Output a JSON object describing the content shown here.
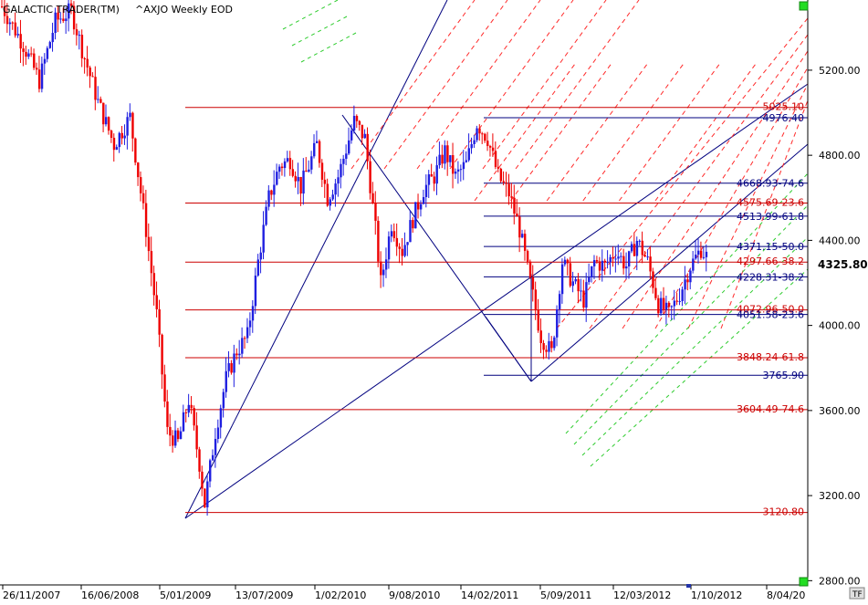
{
  "app": {
    "title": "GALACTIC TRADER(TM)",
    "symbol_caption": "^AXJO Weekly EOD",
    "corner_button": "TF"
  },
  "colors": {
    "background": "#ffffff",
    "up_bar": "#1f1fe0",
    "down_bar": "#ee0000",
    "fib_red": "#cc0000",
    "fib_blue": "#00007f",
    "fork_red": "#ff2a2a",
    "fork_green": "#2ecc2e",
    "axis": "#000000",
    "marker_green": "#22dd22"
  },
  "chart_data": {
    "type": "candlestick",
    "title": "",
    "instrument": "^AXJO",
    "period": "Weekly EOD",
    "x_tick_labels": [
      "26/11/2007",
      "16/06/2008",
      "5/01/2009",
      "13/07/2009",
      "1/02/2010",
      "9/08/2010",
      "14/02/2011",
      "5/09/2011",
      "12/03/2012",
      "1/10/2012",
      "8/04/20"
    ],
    "y_tick_labels": [
      "5200.00",
      "4800.00",
      "4400.00",
      "4000.00",
      "3600.00",
      "3200.00",
      "2800.00"
    ],
    "y_ticks": [
      5200,
      4800,
      4400,
      4000,
      3600,
      3200,
      2800
    ],
    "ylim": [
      2780,
      5530
    ],
    "last_price": "4325.80",
    "price_path": [
      {
        "t": 0,
        "p": 5500
      },
      {
        "t": 8,
        "p": 5320
      },
      {
        "t": 14,
        "p": 5150
      },
      {
        "t": 20,
        "p": 5430
      },
      {
        "t": 26,
        "p": 5480
      },
      {
        "t": 30,
        "p": 5300
      },
      {
        "t": 36,
        "p": 5050
      },
      {
        "t": 42,
        "p": 4850
      },
      {
        "t": 48,
        "p": 4980
      },
      {
        "t": 54,
        "p": 4450
      },
      {
        "t": 58,
        "p": 4050
      },
      {
        "t": 62,
        "p": 3500
      },
      {
        "t": 66,
        "p": 3450
      },
      {
        "t": 70,
        "p": 3650
      },
      {
        "t": 74,
        "p": 3350
      },
      {
        "t": 76,
        "p": 3160
      },
      {
        "t": 80,
        "p": 3500
      },
      {
        "t": 84,
        "p": 3750
      },
      {
        "t": 88,
        "p": 3880
      },
      {
        "t": 92,
        "p": 3950
      },
      {
        "t": 96,
        "p": 4300
      },
      {
        "t": 100,
        "p": 4600
      },
      {
        "t": 104,
        "p": 4750
      },
      {
        "t": 108,
        "p": 4780
      },
      {
        "t": 112,
        "p": 4650
      },
      {
        "t": 118,
        "p": 4850
      },
      {
        "t": 122,
        "p": 4600
      },
      {
        "t": 126,
        "p": 4700
      },
      {
        "t": 132,
        "p": 4960
      },
      {
        "t": 136,
        "p": 4880
      },
      {
        "t": 140,
        "p": 4450
      },
      {
        "t": 142,
        "p": 4200
      },
      {
        "t": 146,
        "p": 4480
      },
      {
        "t": 150,
        "p": 4350
      },
      {
        "t": 154,
        "p": 4500
      },
      {
        "t": 158,
        "p": 4640
      },
      {
        "t": 162,
        "p": 4700
      },
      {
        "t": 166,
        "p": 4820
      },
      {
        "t": 170,
        "p": 4700
      },
      {
        "t": 174,
        "p": 4760
      },
      {
        "t": 178,
        "p": 4950
      },
      {
        "t": 182,
        "p": 4880
      },
      {
        "t": 186,
        "p": 4700
      },
      {
        "t": 190,
        "p": 4620
      },
      {
        "t": 194,
        "p": 4450
      },
      {
        "t": 198,
        "p": 4200
      },
      {
        "t": 202,
        "p": 3950
      },
      {
        "t": 206,
        "p": 3870
      },
      {
        "t": 210,
        "p": 4300
      },
      {
        "t": 214,
        "p": 4200
      },
      {
        "t": 218,
        "p": 4120
      },
      {
        "t": 222,
        "p": 4300
      },
      {
        "t": 226,
        "p": 4280
      },
      {
        "t": 230,
        "p": 4350
      },
      {
        "t": 234,
        "p": 4280
      },
      {
        "t": 238,
        "p": 4400
      },
      {
        "t": 242,
        "p": 4300
      },
      {
        "t": 246,
        "p": 4100
      },
      {
        "t": 250,
        "p": 4050
      },
      {
        "t": 254,
        "p": 4150
      },
      {
        "t": 258,
        "p": 4280
      },
      {
        "t": 262,
        "p": 4360
      },
      {
        "t": 264,
        "p": 4325
      }
    ],
    "fib_levels": [
      {
        "label": "5025.10",
        "value": 5025.1,
        "color": "red"
      },
      {
        "label": "4976.40",
        "value": 4976.4,
        "color": "blue"
      },
      {
        "label": "4668.93-74.6",
        "value": 4668.93,
        "color": "blue"
      },
      {
        "label": "4575.69-23.6",
        "value": 4575.69,
        "color": "red"
      },
      {
        "label": "4513.99-61.8",
        "value": 4513.99,
        "color": "blue"
      },
      {
        "label": "4371.15-50.0",
        "value": 4371.15,
        "color": "blue"
      },
      {
        "label": "4297.66-38.2",
        "value": 4297.66,
        "color": "red"
      },
      {
        "label": "4228.31-38.2",
        "value": 4228.31,
        "color": "blue"
      },
      {
        "label": "4072.96-50.0",
        "value": 4072.96,
        "color": "red"
      },
      {
        "label": "4051.58-23.6",
        "value": 4051.58,
        "color": "blue"
      },
      {
        "label": "3848.24-61.8",
        "value": 3848.24,
        "color": "red"
      },
      {
        "label": "3765.90",
        "value": 3765.9,
        "color": "blue"
      },
      {
        "label": "3604.49-74.6",
        "value": 3604.49,
        "color": "red"
      },
      {
        "label": "3120.80",
        "value": 3120.8,
        "color": "red"
      }
    ]
  }
}
